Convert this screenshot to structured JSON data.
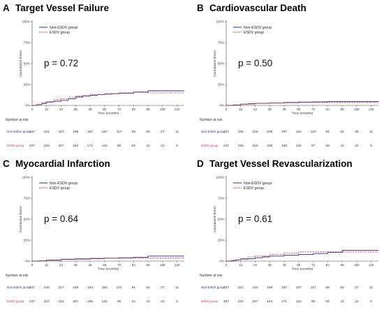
{
  "figure": {
    "legend_labels": [
      "Non-ESDV group",
      "ESDV group"
    ],
    "y_axis_title": "Cumulative Event",
    "x_axis_title": "Time (months)",
    "risk_title": "Number at risk",
    "colors": {
      "non_esdv": "#2c2c8c",
      "esdv": "#c83232"
    }
  },
  "chart_data": [
    {
      "type": "line",
      "letter": "A",
      "title": "Target Vessel Failure",
      "p_value": "p = 0.72",
      "xlabel": "Time (months)",
      "ylabel": "Cumulative Event",
      "xlim": [
        0,
        126
      ],
      "ylim": [
        0,
        100
      ],
      "x_ticks": [
        0,
        12,
        24,
        36,
        48,
        60,
        72,
        84,
        96,
        108,
        120
      ],
      "y_ticks": [
        "0%",
        "25%",
        "50%",
        "75%",
        "100%"
      ],
      "series": [
        {
          "name": "Non-ESDV group",
          "style": "solid",
          "x": [
            0,
            4,
            8,
            12,
            18,
            24,
            30,
            36,
            42,
            48,
            54,
            60,
            66,
            72,
            78,
            84,
            90,
            96,
            126
          ],
          "y": [
            0,
            1,
            2.5,
            4,
            5,
            6,
            8,
            10,
            11,
            12,
            13,
            13.5,
            14,
            14.5,
            14.5,
            16,
            16,
            17.5,
            17.5
          ]
        },
        {
          "name": "ESDV group",
          "style": "dashed",
          "x": [
            0,
            4,
            8,
            12,
            18,
            24,
            30,
            36,
            42,
            48,
            60,
            72,
            84,
            96,
            126
          ],
          "y": [
            0,
            1,
            3,
            4.5,
            7,
            8,
            10,
            11,
            12,
            13,
            14,
            15,
            15.5,
            15,
            15
          ]
        }
      ],
      "at_risk": {
        "Non-ESDV group": [
          237,
          221,
          210,
          199,
          187,
          157,
          117,
          85,
          59,
          27,
          11
        ],
        "ESDV group": [
          237,
          220,
          207,
          194,
          171,
          122,
          89,
          62,
          42,
          22,
          8
        ]
      }
    },
    {
      "type": "line",
      "letter": "B",
      "title": "Cardiovascular Death",
      "p_value": "p = 0.50",
      "xlabel": "Time (months)",
      "ylabel": "Cumulative Event",
      "xlim": [
        0,
        126
      ],
      "ylim": [
        0,
        100
      ],
      "x_ticks": [
        0,
        12,
        24,
        36,
        48,
        60,
        72,
        84,
        96,
        108,
        120
      ],
      "y_ticks": [
        "0%",
        "25%",
        "50%",
        "75%",
        "100%"
      ],
      "series": [
        {
          "name": "Non-ESDV group",
          "style": "solid",
          "x": [
            0,
            6,
            12,
            18,
            24,
            36,
            48,
            60,
            72,
            84,
            96,
            108,
            126
          ],
          "y": [
            0,
            0.5,
            1.5,
            2,
            2.5,
            3,
            3.5,
            4,
            4.2,
            4.5,
            4.5,
            4.5,
            4.5
          ]
        },
        {
          "name": "ESDV group",
          "style": "dashed",
          "x": [
            0,
            6,
            12,
            24,
            36,
            48,
            60,
            72,
            84,
            96,
            126
          ],
          "y": [
            0,
            0.8,
            1.5,
            2.5,
            3,
            3,
            3.5,
            3.5,
            3.5,
            3.5,
            3.5
          ]
        }
      ],
      "at_risk": {
        "Non-ESDV group": [
          237,
          226,
          218,
          208,
          197,
          164,
          123,
          91,
          61,
          28,
          11
        ],
        "ESDV group": [
          237,
          225,
          218,
          209,
          188,
          134,
          97,
          65,
          44,
          22,
          8
        ]
      }
    },
    {
      "type": "line",
      "letter": "C",
      "title": "Myocardial Infarction",
      "p_value": "p = 0.64",
      "xlabel": "Time (months)",
      "ylabel": "Cumulative Event",
      "xlim": [
        0,
        126
      ],
      "ylim": [
        0,
        100
      ],
      "x_ticks": [
        0,
        12,
        24,
        36,
        48,
        60,
        72,
        84,
        96,
        108,
        120
      ],
      "y_ticks": [
        "0%",
        "25%",
        "50%",
        "75%",
        "100%"
      ],
      "series": [
        {
          "name": "Non-ESDV group",
          "style": "solid",
          "x": [
            0,
            6,
            12,
            24,
            36,
            48,
            60,
            72,
            84,
            96,
            108,
            126
          ],
          "y": [
            0,
            0.5,
            1,
            2,
            2.5,
            3,
            3.5,
            4,
            4.5,
            6,
            6,
            6
          ]
        },
        {
          "name": "ESDV group",
          "style": "dashed",
          "x": [
            0,
            6,
            12,
            24,
            36,
            48,
            60,
            72,
            84,
            96,
            126
          ],
          "y": [
            0,
            0.5,
            1.5,
            2.5,
            3,
            3.5,
            3.5,
            3.5,
            3.5,
            3.5,
            3.5
          ]
        }
      ],
      "at_risk": {
        "Non-ESDV group": [
          237,
          225,
          217,
          205,
          193,
          162,
          122,
          91,
          61,
          27,
          11
        ],
        "ESDV group": [
          237,
          222,
          216,
          207,
          185,
          132,
          96,
          64,
          44,
          22,
          8
        ]
      }
    },
    {
      "type": "line",
      "letter": "D",
      "title": "Target Vessel Revascularization",
      "p_value": "p = 0.61",
      "xlabel": "Time (months)",
      "ylabel": "Cumulative Event",
      "xlim": [
        0,
        126
      ],
      "ylim": [
        0,
        100
      ],
      "x_ticks": [
        0,
        12,
        24,
        36,
        48,
        60,
        72,
        84,
        96,
        108,
        120
      ],
      "y_ticks": [
        "0%",
        "25%",
        "50%",
        "75%",
        "100%"
      ],
      "series": [
        {
          "name": "Non-ESDV group",
          "style": "solid",
          "x": [
            0,
            4,
            8,
            12,
            18,
            24,
            30,
            36,
            48,
            60,
            72,
            84,
            96,
            126
          ],
          "y": [
            0,
            0.5,
            1.5,
            2.5,
            3,
            4,
            5,
            6,
            7,
            8,
            9,
            10.5,
            13,
            13
          ]
        },
        {
          "name": "ESDV group",
          "style": "dashed",
          "x": [
            0,
            6,
            12,
            18,
            24,
            36,
            48,
            60,
            72,
            84,
            96,
            126
          ],
          "y": [
            0,
            1.5,
            3,
            5,
            6,
            8,
            9.5,
            11,
            11,
            11,
            11,
            11
          ]
        }
      ],
      "at_risk": {
        "Non-ESDV group": [
          237,
          221,
          210,
          199,
          187,
          157,
          117,
          85,
          59,
          27,
          11
        ],
        "ESDV group": [
          237,
          220,
          207,
          194,
          171,
          122,
          89,
          62,
          42,
          22,
          8
        ]
      }
    }
  ]
}
